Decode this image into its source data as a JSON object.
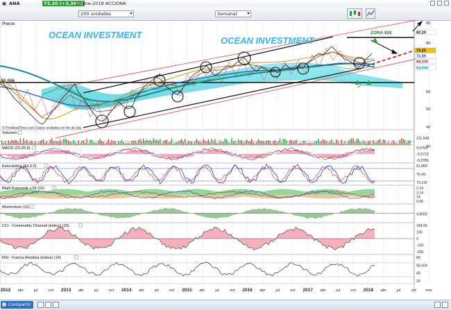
{
  "header": {
    "ticker": "ANA",
    "change": "73,20 (+3,36%)",
    "date_name": "15-ene-2018 ACCIONA"
  },
  "toolbar": {
    "units_select": "200 unidades",
    "period_select": "Semanal"
  },
  "bottom": {
    "share_label": "Compartir"
  },
  "watermarks": [
    "OCEAN INVESTMENT",
    "OCEAN INVESTMENT"
  ],
  "annotations": {
    "zone": "ZONA 82€",
    "level_66": "66,666",
    "source": "© ProRealTime.com  Datos recibidos en fin de día"
  },
  "colors": {
    "accent_green": "#1fa82a",
    "price_box": "#f2c200",
    "ichimoku_cloud": "#7fe3ee",
    "macd_neg": "#e05a6e",
    "ma_blue": "#1f5fbf",
    "ma_teal": "#0f8a8a",
    "red_dash": "#d6201e"
  },
  "price_panel": {
    "label": "Precio",
    "y_ticks": [
      "90",
      "80",
      "70",
      "60",
      "50",
      "40",
      "30"
    ],
    "right_tags": [
      {
        "text": "82,20",
        "bg": "#ffffff",
        "fg": "#000000"
      },
      {
        "text": "73,20",
        "bg": "#f2c200",
        "fg": "#000000"
      },
      {
        "text": "71,55",
        "bg": "#ffffff",
        "fg": "#0033aa"
      },
      {
        "text": "68,235",
        "bg": "#ffffff",
        "fg": "#7a1f1f"
      },
      {
        "text": "64,044",
        "bg": "#ffffff",
        "fg": "#1a8f8f"
      }
    ]
  },
  "panels": [
    {
      "label": "Volumen",
      "ticks": [
        "211.649"
      ]
    },
    {
      "label": "MACD (12,26,9)",
      "ticks": [
        "0,6764",
        "-0,3723",
        "-0,9785"
      ]
    },
    {
      "label": "Estocástico (14,3,5)",
      "ticks": [
        "91,869",
        "76,43",
        "79,142"
      ]
    },
    {
      "label": "Blai5 Koncorde v.09 (15)",
      "ticks": [
        "2.14",
        "3.14",
        "24",
        "0.66"
      ]
    },
    {
      "label": "Momentum (12)",
      "ticks": [
        "4,9000"
      ]
    },
    {
      "label": "CCI - Commodity Channel (indice) (20)",
      "ticks": [
        "184,66",
        "100",
        "0",
        "-100",
        "-200"
      ]
    },
    {
      "label": "RSI - Fuerza Relativa (indice) (14)",
      "ticks": [
        "80",
        "58,424",
        "40",
        "20"
      ]
    }
  ],
  "x_axis": [
    "2012",
    "abr",
    "jul",
    "oct",
    "2013",
    "abr",
    "jul",
    "oct",
    "2014",
    "abr",
    "jul",
    "oct",
    "2015",
    "abr",
    "jul",
    "oct",
    "2016",
    "abr",
    "jul",
    "oct",
    "2017",
    "abr",
    "jul",
    "oct",
    "2018",
    "abr",
    "jul",
    "oct",
    "ene"
  ]
}
